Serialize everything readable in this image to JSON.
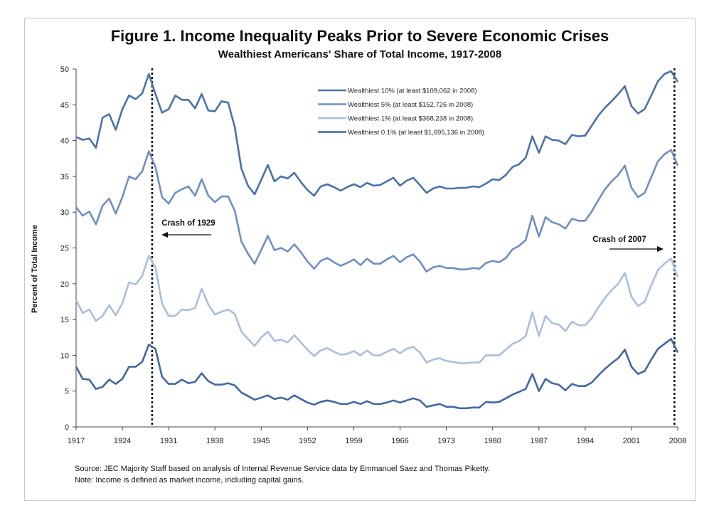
{
  "chart_data": {
    "type": "line",
    "title": "Figure 1. Income Inequality Peaks Prior to Severe Economic Crises",
    "subtitle": "Wealthiest Americans' Share of Total Income, 1917-2008",
    "xlabel": "",
    "ylabel": "Percent of Total Income",
    "xlim": [
      1917,
      2008
    ],
    "ylim": [
      0,
      50
    ],
    "x_ticks": [
      "1917",
      "1924",
      "1931",
      "1938",
      "1945",
      "1952",
      "1959",
      "1966",
      "1973",
      "1980",
      "1987",
      "1994",
      "2001",
      "2008"
    ],
    "y_ticks": [
      "0",
      "5",
      "10",
      "15",
      "20",
      "25",
      "30",
      "35",
      "40",
      "45",
      "50"
    ],
    "grid": false,
    "legend_position": "top-center",
    "x": [
      1917,
      1918,
      1919,
      1920,
      1921,
      1922,
      1923,
      1924,
      1925,
      1926,
      1927,
      1928,
      1929,
      1930,
      1931,
      1932,
      1933,
      1934,
      1935,
      1936,
      1937,
      1938,
      1939,
      1940,
      1941,
      1942,
      1943,
      1944,
      1945,
      1946,
      1947,
      1948,
      1949,
      1950,
      1951,
      1952,
      1953,
      1954,
      1955,
      1956,
      1957,
      1958,
      1959,
      1960,
      1961,
      1962,
      1963,
      1964,
      1965,
      1966,
      1967,
      1968,
      1969,
      1970,
      1971,
      1972,
      1973,
      1974,
      1975,
      1976,
      1977,
      1978,
      1979,
      1980,
      1981,
      1982,
      1983,
      1984,
      1985,
      1986,
      1987,
      1988,
      1989,
      1990,
      1991,
      1992,
      1993,
      1994,
      1995,
      1996,
      1997,
      1998,
      1999,
      2000,
      2001,
      2002,
      2003,
      2004,
      2005,
      2006,
      2007,
      2008
    ],
    "series": [
      {
        "name": "Wealthiest 10% (at least $109,062 in 2008)",
        "color": "#4a72a8",
        "values": [
          40.5,
          40.1,
          40.3,
          39.0,
          43.2,
          43.7,
          41.5,
          44.4,
          46.3,
          45.8,
          46.6,
          49.3,
          46.5,
          43.9,
          44.4,
          46.3,
          45.7,
          45.7,
          44.5,
          46.5,
          44.2,
          44.1,
          45.5,
          45.3,
          41.9,
          36.1,
          33.7,
          32.5,
          34.5,
          36.6,
          34.3,
          35.0,
          34.7,
          35.5,
          34.2,
          33.1,
          32.3,
          33.6,
          33.9,
          33.5,
          33.0,
          33.5,
          33.9,
          33.5,
          34.1,
          33.7,
          33.8,
          34.3,
          34.8,
          33.7,
          34.4,
          34.8,
          33.8,
          32.7,
          33.3,
          33.6,
          33.3,
          33.3,
          33.4,
          33.4,
          33.6,
          33.5,
          34.0,
          34.6,
          34.5,
          35.2,
          36.3,
          36.7,
          37.6,
          40.6,
          38.3,
          40.6,
          40.1,
          40.0,
          39.5,
          40.8,
          40.6,
          40.7,
          42.1,
          43.5,
          44.6,
          45.5,
          46.5,
          47.6,
          44.8,
          43.8,
          44.4,
          46.3,
          48.3,
          49.3,
          49.7,
          48.2
        ]
      },
      {
        "name": "Wealthiest 5% (at least $152,726 in 2008)",
        "color": "#6f8fc1",
        "values": [
          30.7,
          29.5,
          30.1,
          28.3,
          30.9,
          31.9,
          29.8,
          32.1,
          35.0,
          34.6,
          35.7,
          38.5,
          36.3,
          32.1,
          31.2,
          32.7,
          33.2,
          33.6,
          32.3,
          34.6,
          32.3,
          31.4,
          32.2,
          32.2,
          30.2,
          25.9,
          24.2,
          22.8,
          24.7,
          26.7,
          24.7,
          25.0,
          24.5,
          25.5,
          24.4,
          23.1,
          22.1,
          23.2,
          23.6,
          23.0,
          22.5,
          22.9,
          23.4,
          22.6,
          23.5,
          22.8,
          22.8,
          23.4,
          23.9,
          23.0,
          23.7,
          24.1,
          23.1,
          21.7,
          22.3,
          22.5,
          22.2,
          22.2,
          22.0,
          22.0,
          22.2,
          22.1,
          22.9,
          23.2,
          23.0,
          23.6,
          24.8,
          25.3,
          26.1,
          29.5,
          26.6,
          29.3,
          28.6,
          28.3,
          27.7,
          29.1,
          28.8,
          28.8,
          30.1,
          31.7,
          33.2,
          34.3,
          35.2,
          36.5,
          33.4,
          32.1,
          32.7,
          34.9,
          37.1,
          38.1,
          38.7,
          36.5
        ]
      },
      {
        "name": "Wealthiest 1% (at least $368,238 in 2008)",
        "color": "#a9bfdd",
        "values": [
          17.7,
          15.9,
          16.4,
          14.8,
          15.5,
          17.0,
          15.6,
          17.3,
          20.2,
          19.9,
          21.1,
          23.9,
          22.3,
          17.2,
          15.5,
          15.5,
          16.4,
          16.3,
          16.6,
          19.3,
          17.1,
          15.7,
          16.1,
          16.4,
          15.8,
          13.3,
          12.3,
          11.3,
          12.5,
          13.3,
          12.0,
          12.2,
          11.8,
          12.8,
          11.8,
          10.8,
          9.9,
          10.7,
          11.0,
          10.5,
          10.1,
          10.2,
          10.6,
          10.0,
          10.7,
          10.0,
          10.0,
          10.5,
          10.9,
          10.3,
          10.9,
          11.2,
          10.4,
          9.0,
          9.4,
          9.6,
          9.2,
          9.1,
          8.9,
          8.9,
          9.0,
          9.0,
          10.0,
          10.0,
          10.0,
          10.8,
          11.6,
          12.0,
          12.7,
          16.0,
          12.7,
          15.5,
          14.5,
          14.3,
          13.4,
          14.7,
          14.2,
          14.2,
          15.2,
          16.7,
          18.0,
          19.1,
          20.0,
          21.5,
          18.2,
          16.9,
          17.5,
          19.8,
          21.9,
          22.8,
          23.5,
          20.9
        ]
      },
      {
        "name": "Wealthiest 0.1% (at least $1,695,136 in 2008)",
        "color": "#44679f",
        "values": [
          8.4,
          6.7,
          6.6,
          5.3,
          5.6,
          6.6,
          6.0,
          6.7,
          8.4,
          8.4,
          9.1,
          11.5,
          10.9,
          7.0,
          6.0,
          6.0,
          6.6,
          6.1,
          6.3,
          7.5,
          6.4,
          5.9,
          5.9,
          6.1,
          5.8,
          4.8,
          4.3,
          3.8,
          4.1,
          4.4,
          3.9,
          4.1,
          3.8,
          4.4,
          3.9,
          3.4,
          3.1,
          3.5,
          3.7,
          3.5,
          3.2,
          3.2,
          3.5,
          3.2,
          3.6,
          3.2,
          3.2,
          3.4,
          3.7,
          3.4,
          3.7,
          4.0,
          3.7,
          2.8,
          3.0,
          3.2,
          2.8,
          2.8,
          2.6,
          2.6,
          2.7,
          2.7,
          3.5,
          3.4,
          3.5,
          4.0,
          4.5,
          4.9,
          5.3,
          7.4,
          5.0,
          6.7,
          6.1,
          5.9,
          5.1,
          6.0,
          5.7,
          5.7,
          6.2,
          7.2,
          8.1,
          8.9,
          9.6,
          10.8,
          8.4,
          7.4,
          7.8,
          9.4,
          10.9,
          11.6,
          12.3,
          10.4
        ]
      }
    ],
    "annotations": [
      {
        "label": "Crash of 1929",
        "x": 1928
      },
      {
        "label": "Crash of 2007",
        "x": 2007
      }
    ]
  },
  "footer": {
    "source": "Source: JEC Majority Staff based on analysis of Internal Revenue Service data by Emmanuel Saez and Thomas Piketty.",
    "note": "Note: Income is defined as market income, including capital gains."
  }
}
